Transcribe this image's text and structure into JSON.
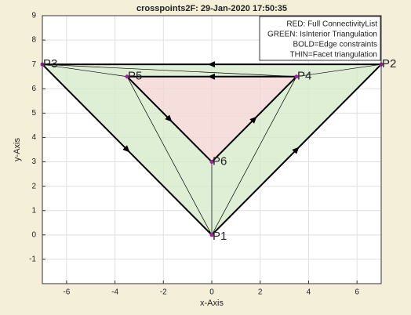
{
  "chart_data": {
    "type": "triangulation",
    "title": "crosspoints2F: 29-Jan-2020 17:50:35",
    "x_label": "x-Axis",
    "y_label": "y-Axis",
    "xlim": [
      -7,
      7
    ],
    "ylim": [
      -2,
      9
    ],
    "xticks": [
      -6,
      -4,
      -2,
      0,
      2,
      4,
      6
    ],
    "yticks": [
      -1,
      0,
      1,
      2,
      3,
      4,
      5,
      6,
      7,
      8,
      9
    ],
    "grid": true,
    "legend": [
      "RED: Full ConnectivityList",
      "GREEN: IsInterior Triangulation",
      "BOLD=Edge constraints",
      "THIN=Facet triangulation"
    ],
    "legend_position": "upper right",
    "points": [
      {
        "name": "P1",
        "x": 0,
        "y": 0
      },
      {
        "name": "P2",
        "x": 7,
        "y": 7
      },
      {
        "name": "P3",
        "x": -7,
        "y": 7
      },
      {
        "name": "P4",
        "x": 3.5,
        "y": 6.5
      },
      {
        "name": "P5",
        "x": -3.5,
        "y": 6.5
      },
      {
        "name": "P6",
        "x": 0,
        "y": 3
      }
    ],
    "point_color": "#a020a0",
    "green_color": "#d6ebcc",
    "red_color": "#f3d6d2",
    "green_triangles": [
      [
        2,
        4,
        0
      ],
      [
        4,
        5,
        0
      ],
      [
        5,
        3,
        0
      ],
      [
        3,
        1,
        0
      ],
      [
        2,
        3,
        4
      ],
      [
        2,
        1,
        3
      ]
    ],
    "red_triangles": [
      [
        4,
        3,
        5
      ]
    ],
    "constraints": [
      [
        1,
        2
      ],
      [
        2,
        0
      ],
      [
        0,
        1
      ],
      [
        3,
        4
      ],
      [
        4,
        5
      ],
      [
        5,
        3
      ]
    ],
    "facets": [
      [
        2,
        4
      ],
      [
        4,
        0
      ],
      [
        5,
        0
      ],
      [
        3,
        0
      ],
      [
        3,
        1
      ],
      [
        2,
        3
      ]
    ]
  }
}
